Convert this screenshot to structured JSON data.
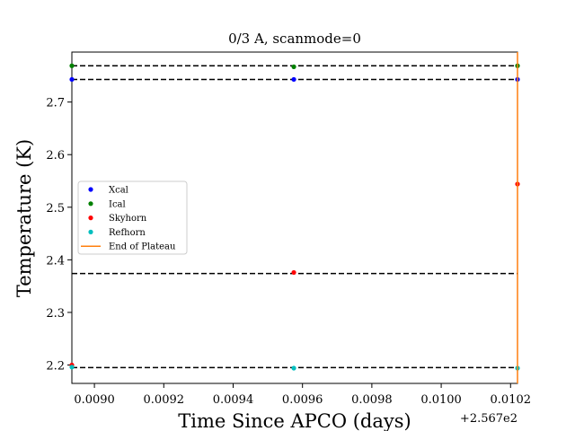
{
  "chart_data": {
    "type": "scatter",
    "title": "0/3 A, scanmode=0",
    "xlabel": "Time Since APCO (days)",
    "ylabel": "Temperature (K)",
    "x_offset_label": "+2.567e2",
    "xlim": [
      0.008935,
      0.01022
    ],
    "ylim": [
      2.165,
      2.795
    ],
    "x_ticks": [
      0.009,
      0.0092,
      0.0094,
      0.0096,
      0.0098,
      0.01,
      0.0102
    ],
    "x_tick_labels": [
      "0.0090",
      "0.0092",
      "0.0094",
      "0.0096",
      "0.0098",
      "0.0100",
      "0.0102"
    ],
    "y_ticks": [
      2.2,
      2.3,
      2.4,
      2.5,
      2.6,
      2.7
    ],
    "y_tick_labels": [
      "2.2",
      "2.3",
      "2.4",
      "2.5",
      "2.6",
      "2.7"
    ],
    "grid": false,
    "legend_position": "center-left",
    "hlines": [
      2.769,
      2.743,
      2.374,
      2.195
    ],
    "hline_color": "#000000",
    "series": [
      {
        "name": "Xcal",
        "color": "#0000ff",
        "marker": "point",
        "points": [
          [
            0.008935,
            2.743
          ],
          [
            0.009575,
            2.743
          ],
          [
            0.01022,
            2.743
          ]
        ]
      },
      {
        "name": "Ical",
        "color": "#008000",
        "marker": "point",
        "points": [
          [
            0.008935,
            2.769
          ],
          [
            0.009575,
            2.767
          ],
          [
            0.01022,
            2.769
          ]
        ]
      },
      {
        "name": "Skyhorn",
        "color": "#ff0000",
        "marker": "point",
        "points": [
          [
            0.008935,
            2.2
          ],
          [
            0.009575,
            2.376
          ],
          [
            0.01022,
            2.544
          ]
        ]
      },
      {
        "name": "Refhorn",
        "color": "#00bfbf",
        "marker": "point",
        "points": [
          [
            0.008935,
            2.196
          ],
          [
            0.009575,
            2.194
          ],
          [
            0.01022,
            2.194
          ]
        ]
      },
      {
        "name": "End of Plateau",
        "color": "#ff7f0e",
        "marker": "vline",
        "x": 0.01022
      }
    ]
  }
}
